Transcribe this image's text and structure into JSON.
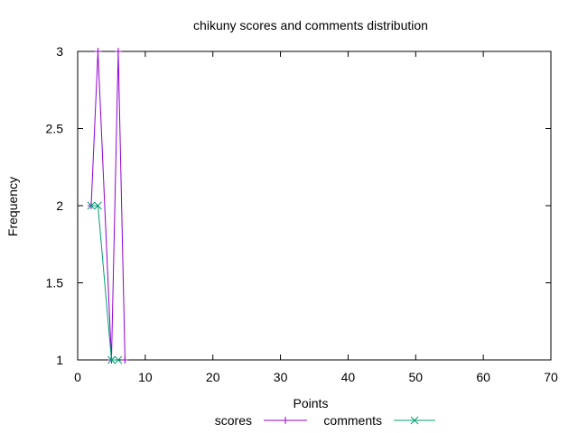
{
  "chart_data": {
    "type": "line",
    "title": "chikuny scores and comments distribution",
    "xlabel": "Points",
    "ylabel": "Frequency",
    "xlim": [
      0,
      70
    ],
    "ylim": [
      1,
      3
    ],
    "xticks": [
      0,
      10,
      20,
      30,
      40,
      50,
      60,
      70
    ],
    "yticks": [
      1,
      1.5,
      2,
      2.5,
      3
    ],
    "ytick_labels": [
      "1",
      "1.5",
      "2",
      "2.5",
      "3"
    ],
    "grid": false,
    "legend_position": "bottom-center",
    "series": [
      {
        "name": "scores",
        "color": "#9400d3",
        "marker": "plus",
        "x": [
          2,
          3,
          5,
          6,
          7
        ],
        "y": [
          2,
          3,
          1,
          3,
          1
        ]
      },
      {
        "name": "comments",
        "color": "#009e73",
        "marker": "cross",
        "x": [
          2,
          3,
          5,
          6
        ],
        "y": [
          2,
          2,
          1,
          1
        ]
      }
    ]
  }
}
